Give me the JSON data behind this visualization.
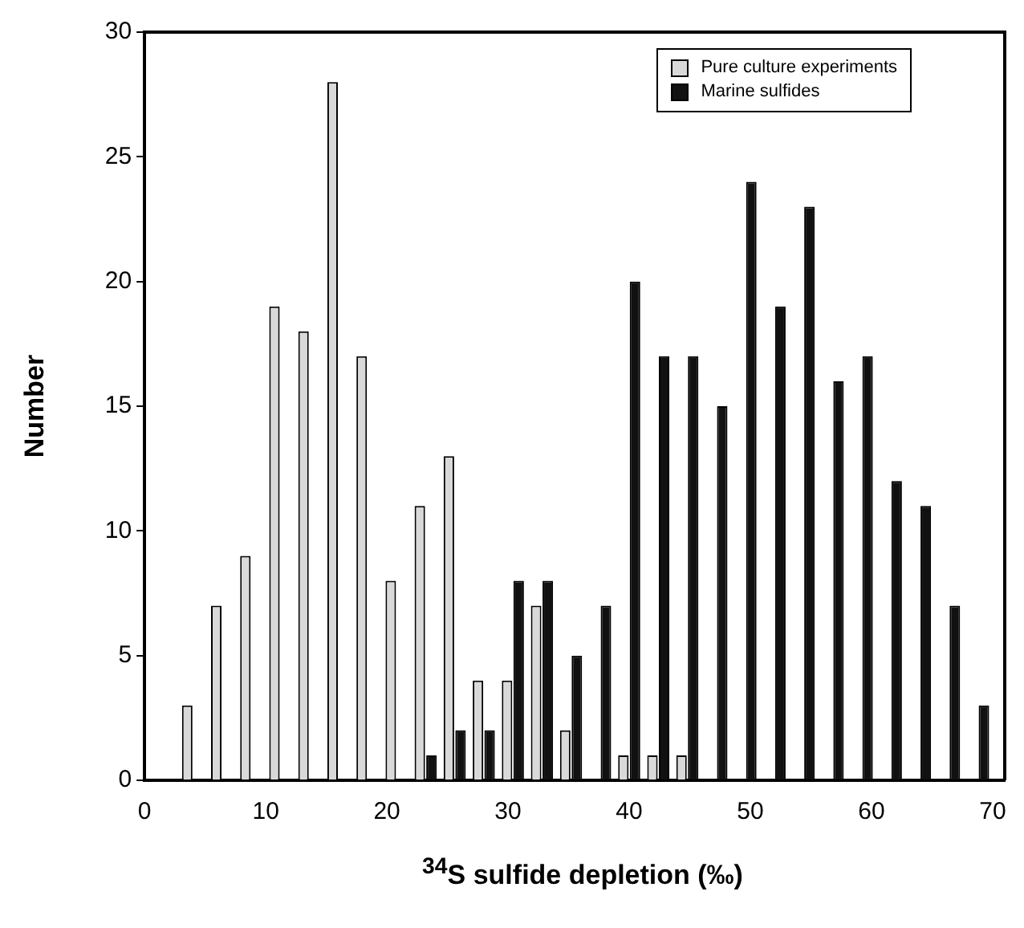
{
  "chart_data": {
    "type": "bar",
    "xlabel": "$^{34}$S sulfide depletion (‰)",
    "ylabel": "Number",
    "x": [
      4,
      6.4,
      8.8,
      11.2,
      13.6,
      16,
      18.4,
      20.8,
      23.2,
      25.6,
      28,
      30.4,
      32.8,
      35.2,
      37.6,
      40,
      42.4,
      44.8,
      47.2,
      49.6,
      52,
      54.4,
      56.8,
      59.2,
      61.6,
      64,
      66.4,
      68.8
    ],
    "series": [
      {
        "name": "Pure culture experiments",
        "color": "#d9d9d9",
        "values": [
          3,
          7,
          9,
          19,
          18,
          28,
          17,
          8,
          11,
          13,
          4,
          4,
          7,
          2,
          null,
          1,
          1,
          1,
          null,
          null,
          null,
          null,
          null,
          null,
          null,
          null,
          null,
          null
        ]
      },
      {
        "name": "Marine sulfides",
        "color": "#111111",
        "values": [
          null,
          null,
          null,
          null,
          null,
          null,
          null,
          null,
          1,
          2,
          2,
          8,
          8,
          5,
          7,
          20,
          17,
          17,
          15,
          24,
          19,
          23,
          16,
          17,
          12,
          11,
          7,
          3
        ]
      }
    ],
    "xlim": [
      0,
      71
    ],
    "xticks": [
      0,
      10,
      20,
      30,
      40,
      50,
      60,
      70
    ],
    "ylim": [
      0,
      30
    ],
    "yticks": [
      0,
      5,
      10,
      15,
      20,
      25,
      30
    ],
    "grid": false,
    "legend": "top right"
  }
}
